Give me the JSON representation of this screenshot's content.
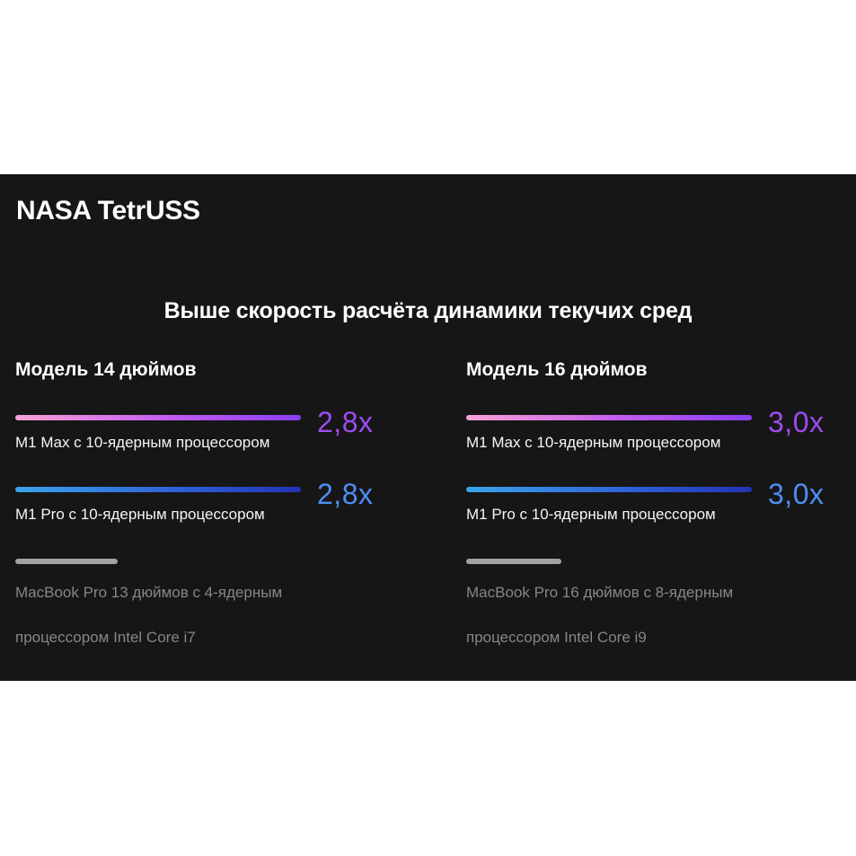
{
  "app_title": "NASA TetrUSS",
  "chart_data": {
    "type": "bar",
    "title": "Выше скорость расчёта динамики текучих сред",
    "xlabel": "",
    "ylabel": "",
    "value_unit": "x",
    "groups": [
      {
        "title": "Модель 14 дюймов",
        "categories": [
          "M1 Max с 10-ядерным процессором",
          "M1 Pro с 10-ядерным процессором",
          "MacBook Pro 13 дюймов с 4-ядерным процессором Intel Core i7"
        ],
        "values": [
          2.8,
          2.8,
          1.0
        ],
        "value_labels": [
          "2,8x",
          "2,8x",
          ""
        ]
      },
      {
        "title": "Модель 16 дюймов",
        "categories": [
          "M1 Max с 10-ядерным процессором",
          "M1 Pro с 10-ядерным процессором",
          "MacBook Pro 16 дюймов с 8-ядерным процессором Intel Core i9"
        ],
        "values": [
          3.0,
          3.0,
          1.0
        ],
        "value_labels": [
          "3,0x",
          "3,0x",
          ""
        ]
      }
    ]
  },
  "colors": {
    "background": "#161616",
    "max_bar_gradient": [
      "#f6a3d6",
      "#c05cf0",
      "#8a3ff0"
    ],
    "pro_bar_gradient": [
      "#3ba3ec",
      "#2f63d6",
      "#2233b4"
    ],
    "baseline_bar": "#a1a1a6",
    "max_value_text": "#9d4cf2",
    "pro_value_text": "#4f8ef5"
  }
}
